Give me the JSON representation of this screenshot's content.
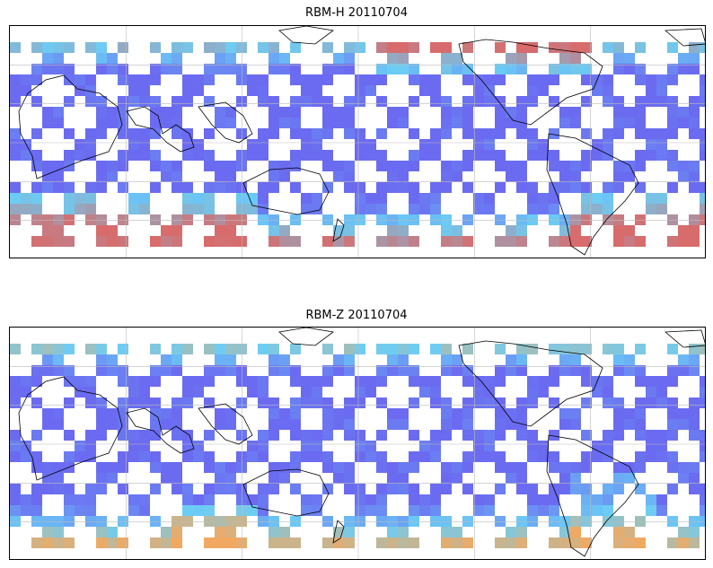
{
  "panels": [
    {
      "title": "RBM-H 20110704",
      "colors": {
        "low": "#5b5bf0",
        "mid": "#5bc8f5",
        "high": "#d45b5b"
      },
      "hotspots": [
        "south-pacific-high",
        "south-atlantic-high",
        "north-atlantic-moderate"
      ]
    },
    {
      "title": "RBM-Z 20110704",
      "colors": {
        "low": "#5b5bf0",
        "mid": "#5bc8f5",
        "high": "#f0a050"
      },
      "hotspots": [
        "south-pacific-moderate",
        "south-atlantic-moderate"
      ]
    }
  ],
  "map": {
    "projection": "equirectangular",
    "graticule": true,
    "coastlines": true
  }
}
